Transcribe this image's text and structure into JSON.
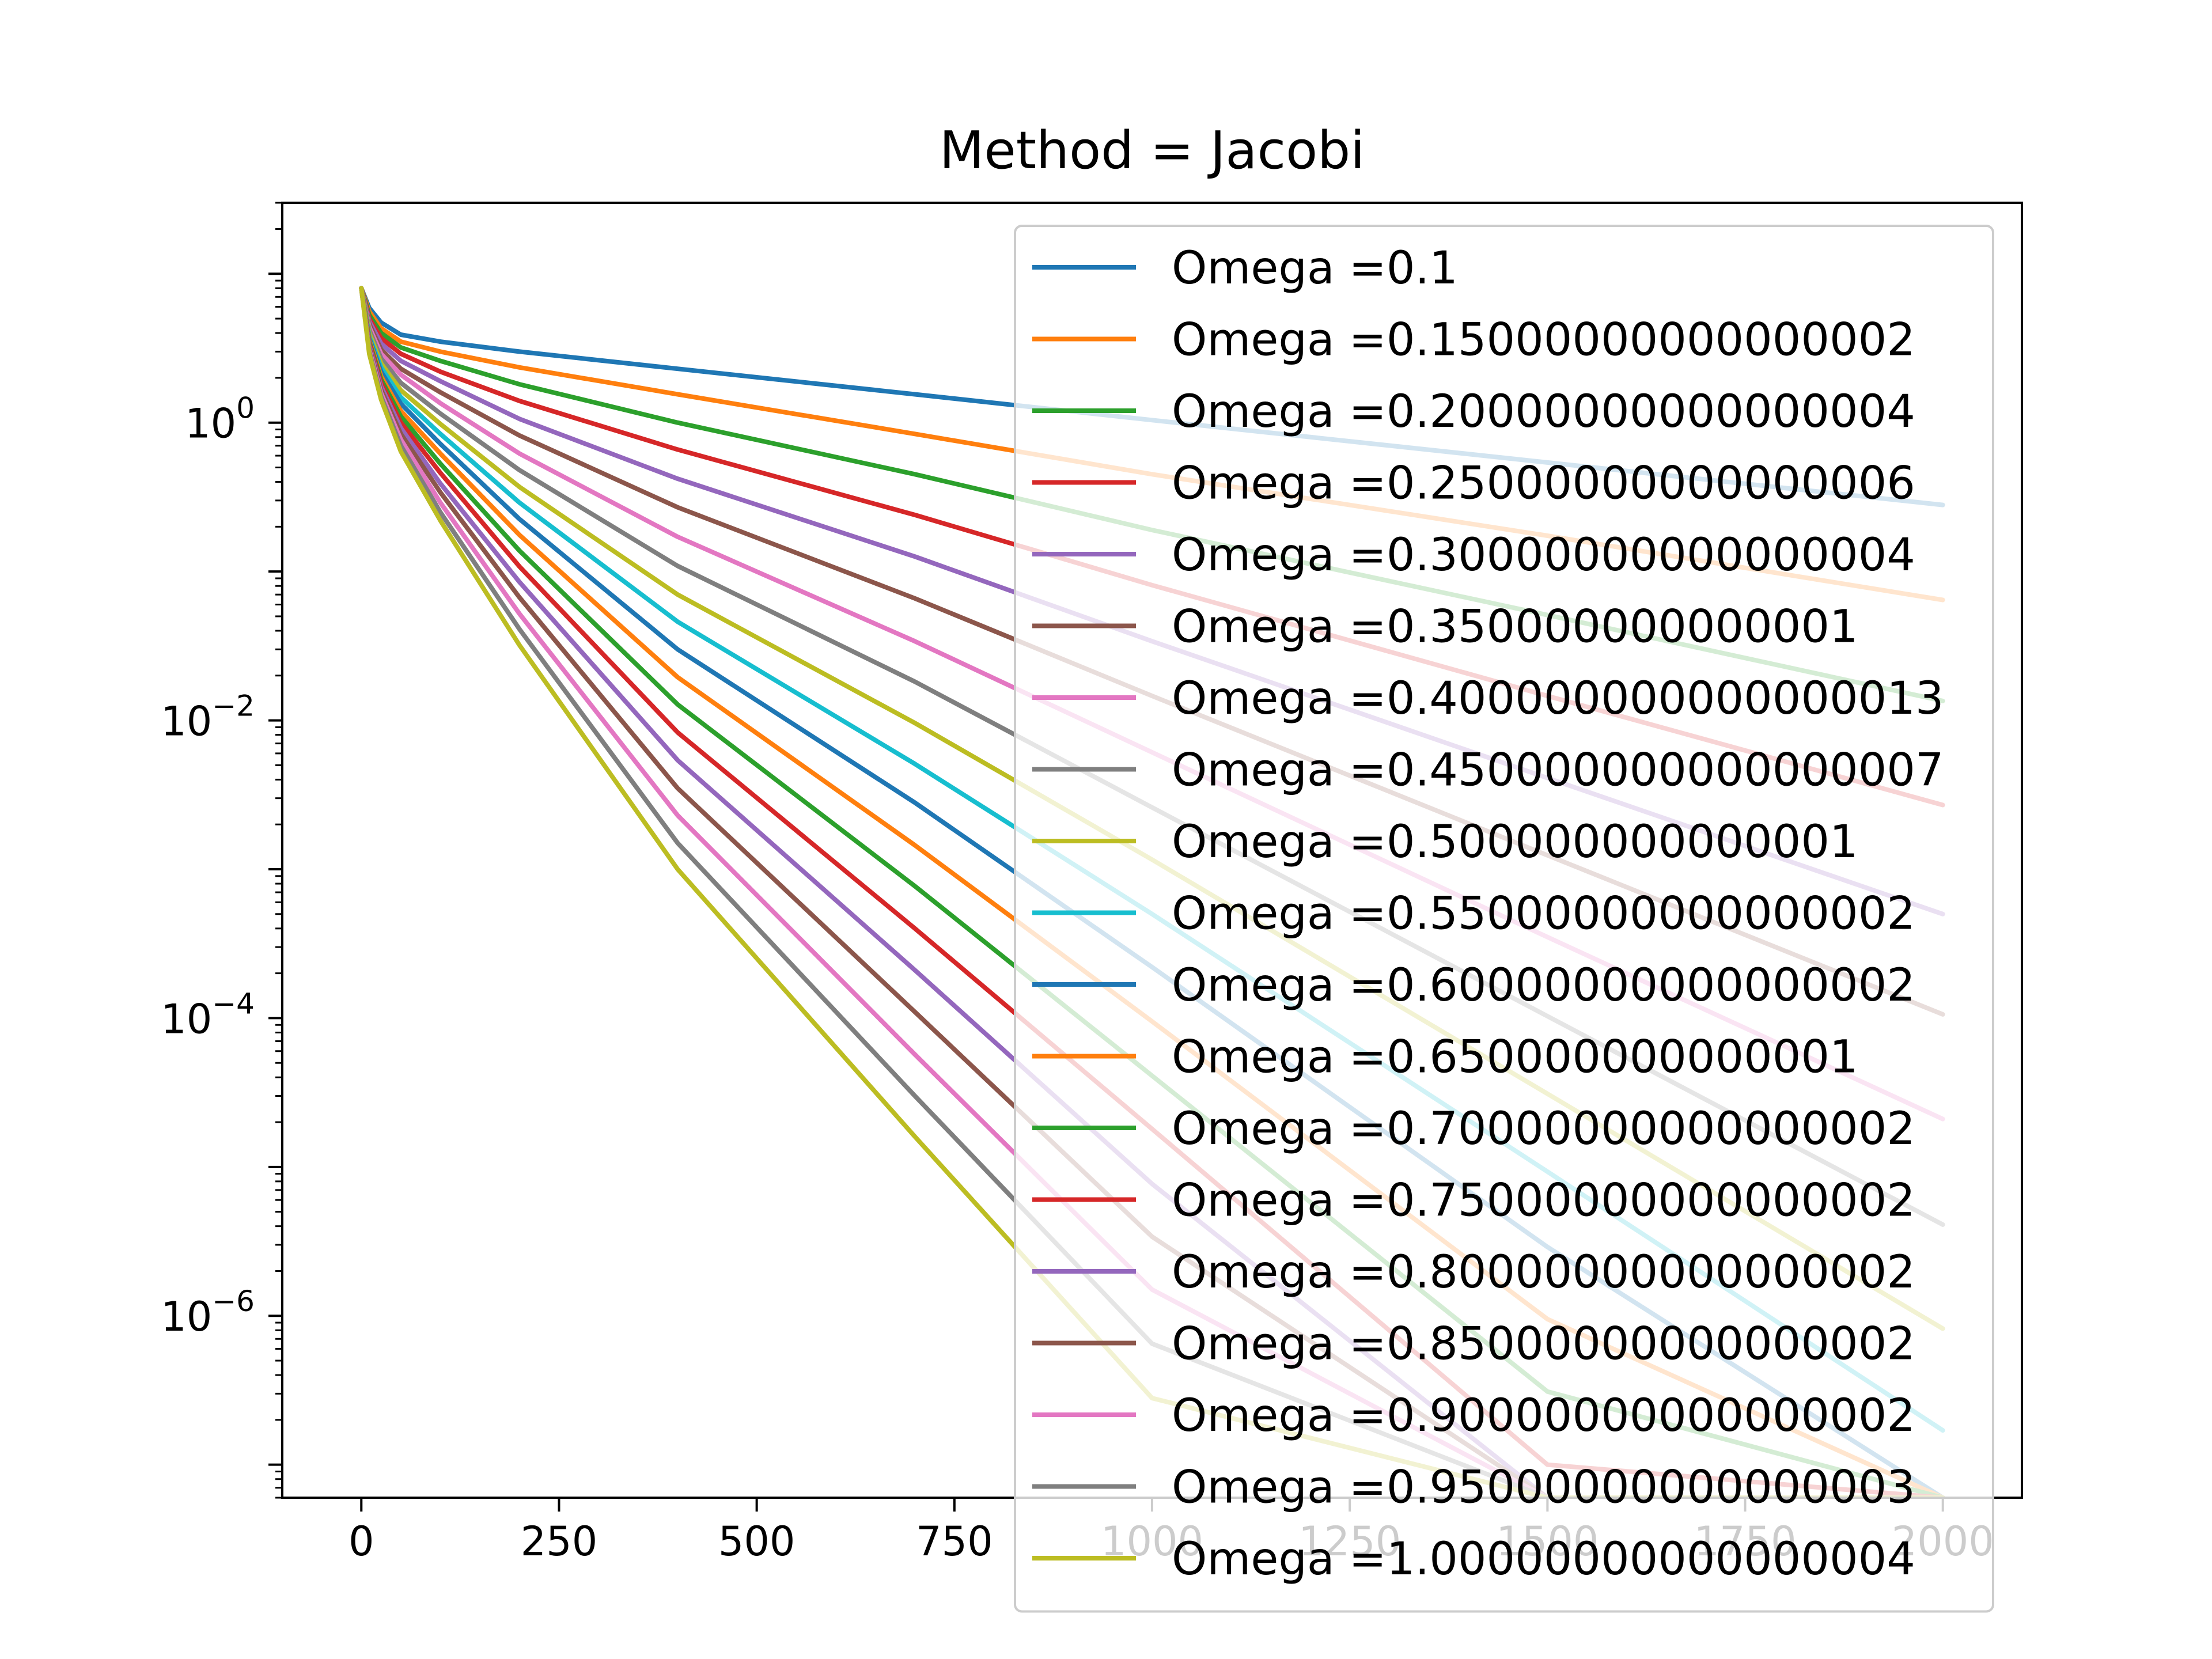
{
  "chart_data": {
    "type": "line",
    "title": "Method = Jacobi",
    "xlabel": "",
    "ylabel": "",
    "yscale": "log",
    "xlim": [
      -100,
      2100
    ],
    "ylim": [
      6e-08,
      30
    ],
    "xticks": [
      0,
      250,
      500,
      750,
      1000,
      1250,
      1500,
      1750,
      2000
    ],
    "xtick_labels": [
      "0",
      "250",
      "500",
      "750",
      "1000",
      "1250",
      "1500",
      "1750",
      "2000"
    ],
    "yticks": [
      1,
      0.01,
      0.0001,
      1e-06
    ],
    "ytick_labels": [
      {
        "base": "10",
        "exp": "0"
      },
      {
        "base": "10",
        "exp": "−2"
      },
      {
        "base": "10",
        "exp": "−4"
      },
      {
        "base": "10",
        "exp": "−6"
      }
    ],
    "grid": false,
    "legend_position": "upper right",
    "x": [
      0,
      10,
      25,
      50,
      100,
      200,
      400,
      700,
      1000,
      1500,
      2000
    ],
    "series": [
      {
        "name": "Omega =0.1",
        "color": "#1f77b4",
        "values": [
          8,
          5.9,
          4.7,
          3.9,
          3.5,
          3.0,
          2.3,
          1.55,
          1.04,
          0.54,
          0.28
        ]
      },
      {
        "name": "Omega =0.15000000000000002",
        "color": "#ff7f0e",
        "values": [
          8,
          5.6,
          4.3,
          3.5,
          3.0,
          2.35,
          1.55,
          0.84,
          0.45,
          0.174,
          0.0644
        ]
      },
      {
        "name": "Omega =0.20000000000000004",
        "color": "#2ca02c",
        "values": [
          8,
          5.3,
          4.0,
          3.2,
          2.6,
          1.81,
          1.0,
          0.45,
          0.19,
          0.051,
          0.0135
        ]
      },
      {
        "name": "Omega =0.25000000000000006",
        "color": "#d62728",
        "values": [
          8,
          5.0,
          3.7,
          2.9,
          2.2,
          1.4,
          0.66,
          0.24,
          0.081,
          0.0146,
          0.0027
        ]
      },
      {
        "name": "Omega =0.30000000000000004",
        "color": "#9467bd",
        "values": [
          8,
          4.8,
          3.4,
          2.6,
          1.9,
          1.06,
          0.42,
          0.126,
          0.034,
          0.0041,
          0.0005
        ]
      },
      {
        "name": "Omega =0.350000000000001",
        "color": "#8c564b",
        "values": [
          8,
          4.6,
          3.1,
          2.3,
          1.6,
          0.82,
          0.27,
          0.066,
          0.0146,
          0.00124,
          0.000106
        ]
      },
      {
        "name": "Omega =0.400000000000000013",
        "color": "#e377c2",
        "values": [
          8,
          4.4,
          2.9,
          2.1,
          1.35,
          0.62,
          0.171,
          0.034,
          0.0061,
          0.00035,
          2.1e-05
        ]
      },
      {
        "name": "Omega =0.450000000000000007",
        "color": "#7f7f7f",
        "values": [
          8,
          4.2,
          2.7,
          1.85,
          1.15,
          0.48,
          0.109,
          0.0182,
          0.0026,
          0.000103,
          4.1e-06
        ]
      },
      {
        "name": "Omega =0.500000000000001",
        "color": "#bcbd22",
        "values": [
          8,
          4.0,
          2.5,
          1.65,
          0.98,
          0.37,
          0.07,
          0.0096,
          0.00116,
          3.1e-05,
          8.2e-07
        ]
      },
      {
        "name": "Omega =0.55000000000000002",
        "color": "#17becf",
        "values": [
          8,
          3.8,
          2.35,
          1.48,
          0.84,
          0.29,
          0.046,
          0.0051,
          0.0005,
          9.3e-06,
          1.7e-07
        ]
      },
      {
        "name": "Omega =0.60000000000000002",
        "color": "#1f77b4",
        "values": [
          8,
          3.7,
          2.2,
          1.34,
          0.72,
          0.225,
          0.03,
          0.0028,
          0.00022,
          2.9e-06,
          6e-08
        ]
      },
      {
        "name": "Omega =0.650000000000001",
        "color": "#ff7f0e",
        "values": [
          8,
          3.6,
          2.05,
          1.2,
          0.62,
          0.176,
          0.0195,
          0.00145,
          9.5e-05,
          9.5e-07,
          6e-08
        ]
      },
      {
        "name": "Omega =0.70000000000000002",
        "color": "#2ca02c",
        "values": [
          8,
          3.5,
          1.95,
          1.1,
          0.53,
          0.138,
          0.0128,
          0.00077,
          4.1e-05,
          3.1e-07,
          6e-08
        ]
      },
      {
        "name": "Omega =0.75000000000000002",
        "color": "#d62728",
        "values": [
          8,
          3.4,
          1.85,
          1.0,
          0.46,
          0.108,
          0.0083,
          0.0004,
          1.8e-05,
          1e-07,
          6e-08
        ]
      },
      {
        "name": "Omega =0.80000000000000002",
        "color": "#9467bd",
        "values": [
          8,
          3.3,
          1.75,
          0.92,
          0.39,
          0.085,
          0.0054,
          0.00021,
          7.7e-06,
          6e-08,
          6e-08
        ]
      },
      {
        "name": "Omega =0.85000000000000002",
        "color": "#8c564b",
        "values": [
          8,
          3.2,
          1.66,
          0.84,
          0.34,
          0.067,
          0.0035,
          0.00011,
          3.4e-06,
          6e-08,
          6e-08
        ]
      },
      {
        "name": "Omega =0.90000000000000002",
        "color": "#e377c2",
        "values": [
          8,
          3.1,
          1.58,
          0.77,
          0.29,
          0.052,
          0.0023,
          5.7e-05,
          1.5e-06,
          6e-08,
          6e-08
        ]
      },
      {
        "name": "Omega =0.95000000000000003",
        "color": "#7f7f7f",
        "values": [
          8,
          3.0,
          1.5,
          0.7,
          0.25,
          0.041,
          0.0015,
          3e-05,
          6.5e-07,
          6e-08,
          6e-08
        ]
      },
      {
        "name": "Omega =1.00000000000000004",
        "color": "#bcbd22",
        "values": [
          8,
          2.9,
          1.43,
          0.64,
          0.22,
          0.032,
          0.001,
          1.6e-05,
          2.8e-07,
          6e-08,
          6e-08
        ]
      }
    ]
  }
}
